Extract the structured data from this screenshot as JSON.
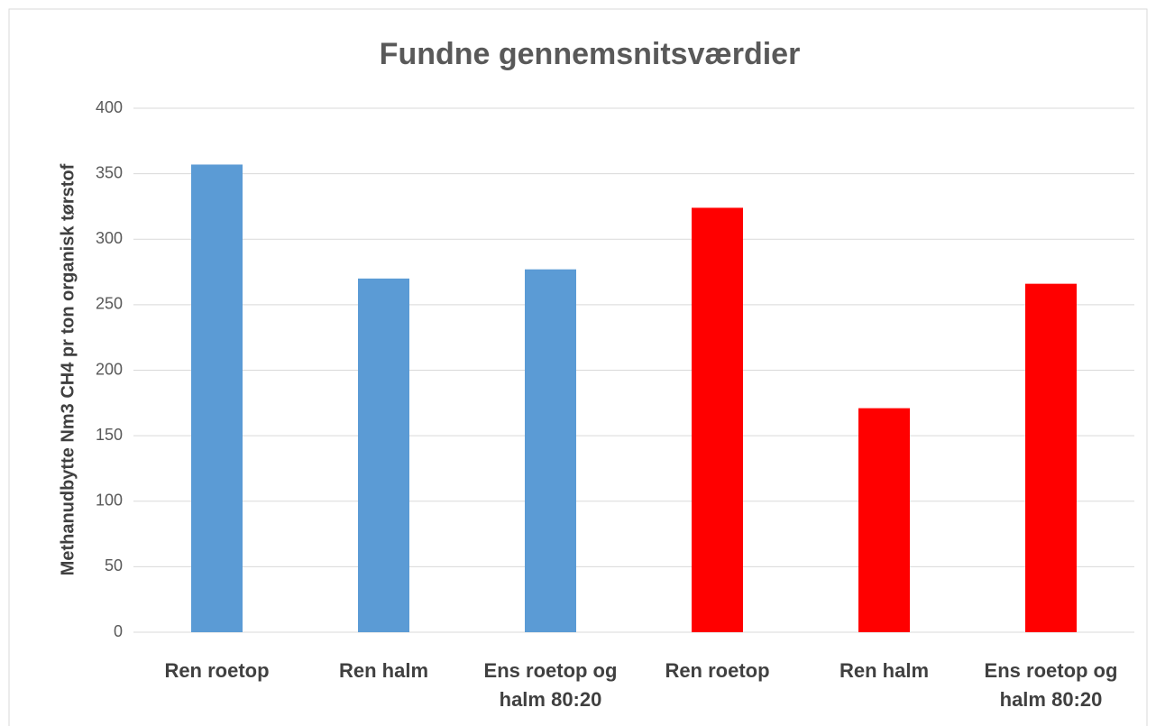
{
  "chart_data": {
    "type": "bar",
    "title": "Fundne gennemsnitsværdier",
    "y_label": "Methanudbytte  Nm3 CH4 pr ton organisk tørstof",
    "categories": [
      "Ren roetop",
      "Ren halm",
      "Ens roetop og halm 80:20",
      "Ren roetop",
      "Ren halm",
      "Ens roetop og halm 80:20"
    ],
    "values": [
      357,
      270,
      277,
      324,
      171,
      266
    ],
    "colors": [
      "#5b9bd5",
      "#5b9bd5",
      "#5b9bd5",
      "#ff0000",
      "#ff0000",
      "#ff0000"
    ],
    "ylim": [
      0,
      400
    ],
    "yticks": [
      0,
      50,
      100,
      150,
      200,
      250,
      300,
      350,
      400
    ],
    "grid": true
  }
}
